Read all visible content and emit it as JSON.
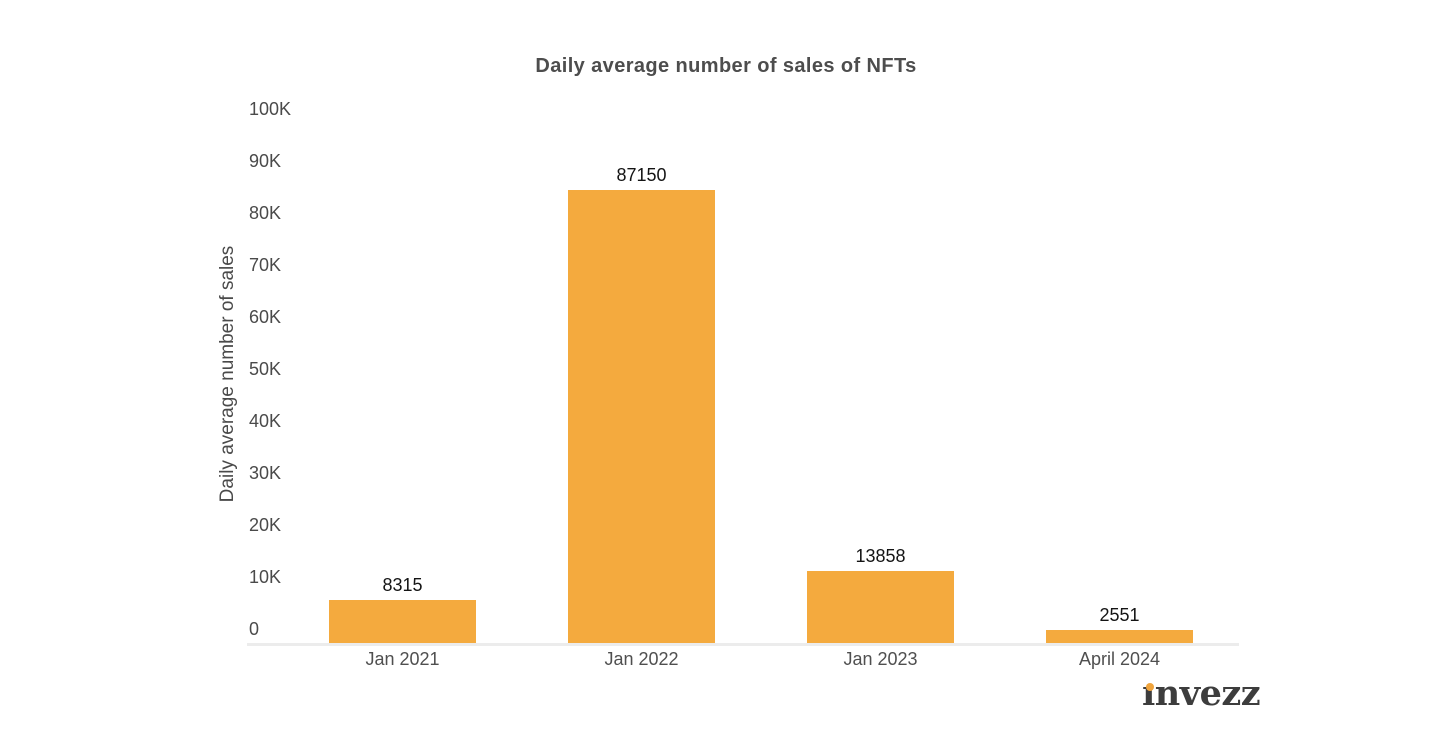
{
  "chart_data": {
    "type": "bar",
    "title": "Daily average number of sales of NFTs",
    "xlabel": "",
    "ylabel": "Daily average number of sales",
    "categories": [
      "Jan 2021",
      "Jan 2022",
      "Jan 2023",
      "April 2024"
    ],
    "values": [
      8315,
      87150,
      13858,
      2551
    ],
    "bar_value_labels": [
      "8315",
      "87150",
      "13858",
      "2551"
    ],
    "ylim": [
      0,
      100000
    ],
    "ytick_interval": 10000,
    "ytick_labels": [
      "0",
      "10K",
      "20K",
      "30K",
      "40K",
      "50K",
      "60K",
      "70K",
      "80K",
      "90K",
      "100K"
    ],
    "grid": false,
    "legend_position": "none",
    "bar_color": "#f4aa3e"
  },
  "branding": {
    "logo_text": "invezz",
    "logo_dot_color": "#f0a43c"
  },
  "colors": {
    "background": "#ffffff",
    "title_text": "#4d4d4d",
    "axis_text": "#4a4a4a",
    "value_text": "#141414",
    "baseline": "#ececec",
    "logo_text": "#3d3d3d"
  }
}
